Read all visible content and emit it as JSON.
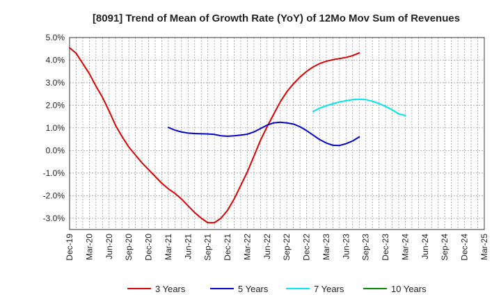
{
  "chart_data": {
    "type": "line",
    "title": "[8091]  Trend of Mean of Growth Rate (YoY) of 12Mo Mov Sum of Revenues",
    "xlabel": "",
    "ylabel": "",
    "ylim": [
      -3.5,
      5.0
    ],
    "y_ticks": [
      5.0,
      4.0,
      3.0,
      2.0,
      1.0,
      0.0,
      -1.0,
      -2.0,
      -3.0
    ],
    "y_tick_labels": [
      "5.0%",
      "4.0%",
      "3.0%",
      "2.0%",
      "1.0%",
      "0.0%",
      "-1.0%",
      "-2.0%",
      "-3.0%"
    ],
    "x_tick_labels": [
      "Dec-19",
      "Mar-20",
      "Jun-20",
      "Sep-20",
      "Dec-20",
      "Mar-21",
      "Jun-21",
      "Sep-21",
      "Dec-21",
      "Mar-22",
      "Jun-22",
      "Sep-22",
      "Dec-22",
      "Mar-23",
      "Jun-23",
      "Sep-23",
      "Dec-23",
      "Mar-24",
      "Jun-24",
      "Sep-24",
      "Dec-24",
      "Mar-25"
    ],
    "grid": true,
    "legend_position": "bottom",
    "series": [
      {
        "name": "3 Years",
        "color": "#dd0000",
        "start_index": 0,
        "values": [
          4.55,
          4.3,
          3.85,
          3.4,
          2.85,
          2.35,
          1.75,
          1.1,
          0.6,
          0.15,
          -0.2,
          -0.55,
          -0.85,
          -1.15,
          -1.45,
          -1.7,
          -1.9,
          -2.15,
          -2.45,
          -2.75,
          -3.0,
          -3.2,
          -3.2,
          -3.0,
          -2.65,
          -2.15,
          -1.55,
          -0.95,
          -0.25,
          0.45,
          1.05,
          1.6,
          2.15,
          2.6,
          2.95,
          3.25,
          3.5,
          3.7,
          3.85,
          3.95,
          4.02,
          4.07,
          4.12,
          4.2,
          4.32
        ]
      },
      {
        "name": "5 Years",
        "color": "#0000cc",
        "start_index": 15,
        "values": [
          1.02,
          0.9,
          0.82,
          0.77,
          0.75,
          0.74,
          0.73,
          0.71,
          0.65,
          0.63,
          0.65,
          0.68,
          0.72,
          0.82,
          0.97,
          1.12,
          1.22,
          1.25,
          1.22,
          1.17,
          1.05,
          0.88,
          0.68,
          0.48,
          0.33,
          0.23,
          0.22,
          0.3,
          0.42,
          0.6
        ]
      },
      {
        "name": "7 Years",
        "color": "#00e5ee",
        "start_index": 37,
        "values": [
          1.72,
          1.88,
          1.98,
          2.07,
          2.15,
          2.2,
          2.25,
          2.27,
          2.25,
          2.18,
          2.08,
          1.95,
          1.8,
          1.62,
          1.55
        ]
      },
      {
        "name": "10 Years",
        "color": "#008800",
        "start_index": 0,
        "values": []
      }
    ]
  }
}
